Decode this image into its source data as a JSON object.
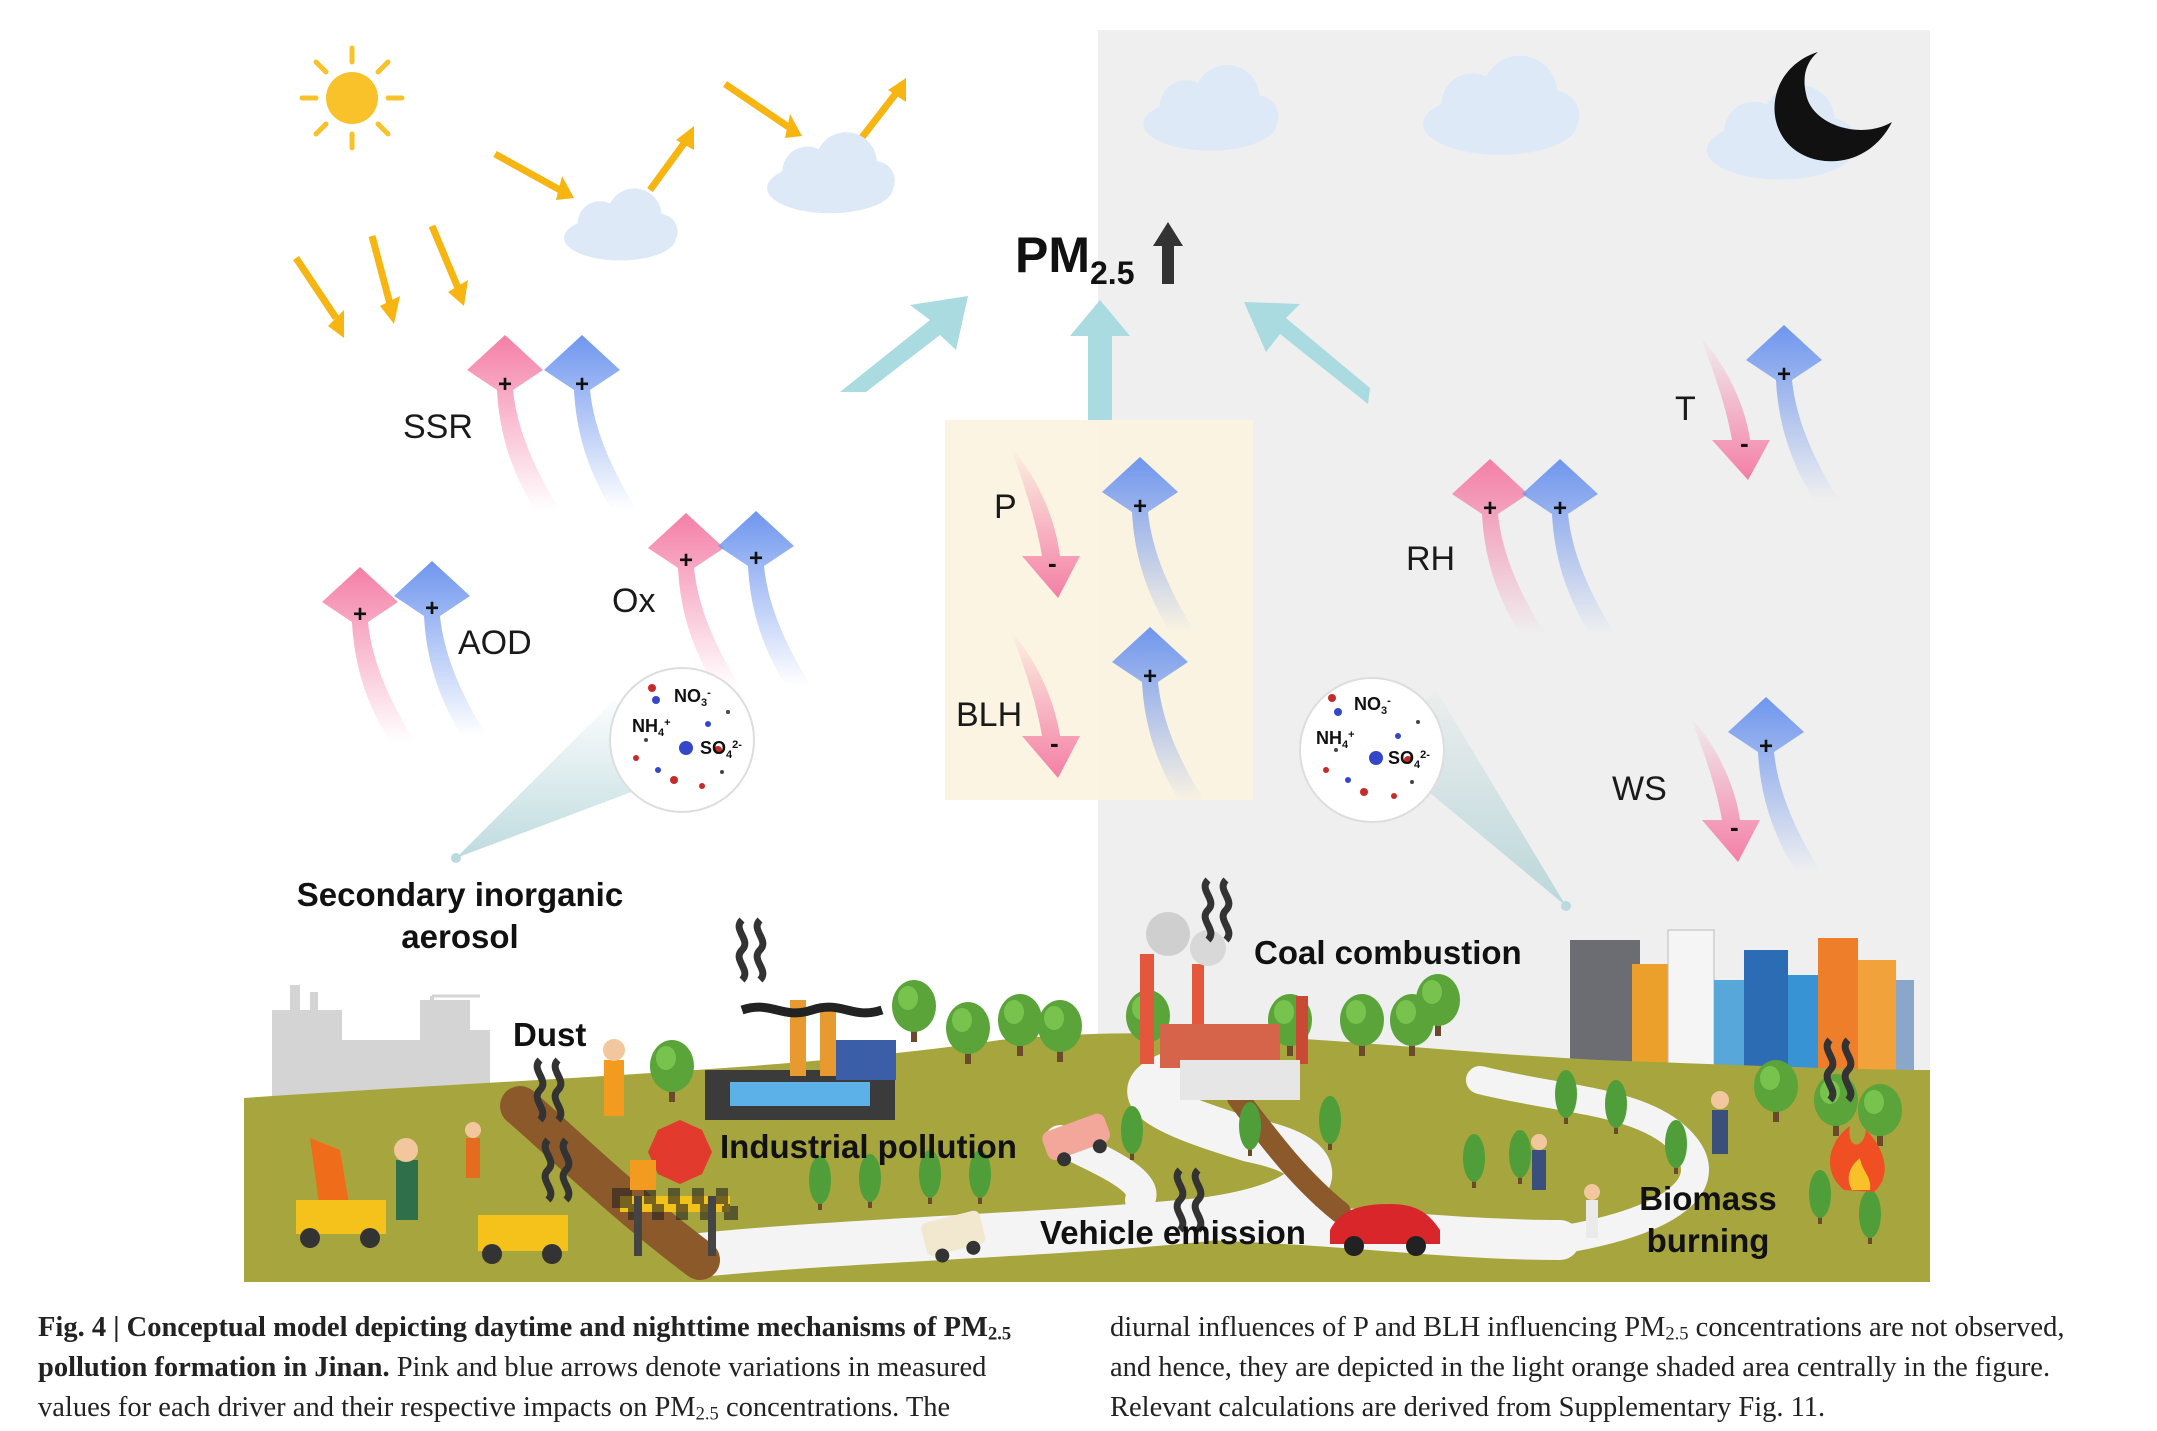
{
  "diagram": {
    "target": {
      "text": "PM",
      "sub": "2.5"
    },
    "drivers": [
      {
        "id": "SSR",
        "label": "SSR",
        "pink_sign": "+",
        "blue_sign": "+"
      },
      {
        "id": "AOD",
        "label": "AOD",
        "pink_sign": "+",
        "blue_sign": "+"
      },
      {
        "id": "Ox",
        "label": "Ox",
        "pink_sign": "+",
        "blue_sign": "+"
      },
      {
        "id": "P",
        "label": "P",
        "pink_sign": "-",
        "blue_sign": "+"
      },
      {
        "id": "BLH",
        "label": "BLH",
        "pink_sign": "-",
        "blue_sign": "+"
      },
      {
        "id": "RH",
        "label": "RH",
        "pink_sign": "+",
        "blue_sign": "+"
      },
      {
        "id": "T",
        "label": "T",
        "pink_sign": "-",
        "blue_sign": "+"
      },
      {
        "id": "WS",
        "label": "WS",
        "pink_sign": "-",
        "blue_sign": "+"
      }
    ],
    "aerosol_ions": {
      "no3": "NO",
      "no3_sub": "3",
      "no3_sup": "-",
      "nh4": "NH",
      "nh4_sub": "4",
      "nh4_sup": "+",
      "so4": "SO",
      "so4_sub": "4",
      "so4_sup": "2-"
    },
    "sources": {
      "secondary_line1": "Secondary inorganic",
      "secondary_line2": "aerosol",
      "dust": "Dust",
      "industrial": "Industrial pollution",
      "coal": "Coal combustion",
      "vehicle": "Vehicle emission",
      "biomass_line1": "Biomass",
      "biomass_line2": "burning"
    },
    "colors": {
      "pink_arrow": "#f47fa6",
      "blue_arrow": "#6f96ee",
      "teal_arrow": "#a9dbe0",
      "night_bg": "#efefef",
      "shaded_area": "#fbf3e0",
      "ground": "#a7a53e",
      "road": "#f3f3f3",
      "sun": "#f9c22a",
      "cloud": "#dde9f7"
    }
  },
  "caption": {
    "fig": "Fig. 4 |",
    "title1": "Conceptual model depicting daytime and nighttime mechanisms of PM",
    "title_sub": "2.5",
    "title2": "pollution formation in Jinan.",
    "left_line2_rest": "Pink and blue arrows denote variations in measured",
    "left_line3": "values for each driver and their respective impacts on PM",
    "left_line3_sub": "2.5",
    "left_line3_end": "concentrations. The",
    "right_line1a": "diurnal influences of P and BLH influencing PM",
    "right_line1_sub": "2.5",
    "right_line1b": "concentrations are not observed,",
    "right_line2": "and hence, they are depicted in the light orange shaded area centrally in the figure.",
    "right_line3": "Relevant calculations are derived from Supplementary Fig. 11."
  }
}
